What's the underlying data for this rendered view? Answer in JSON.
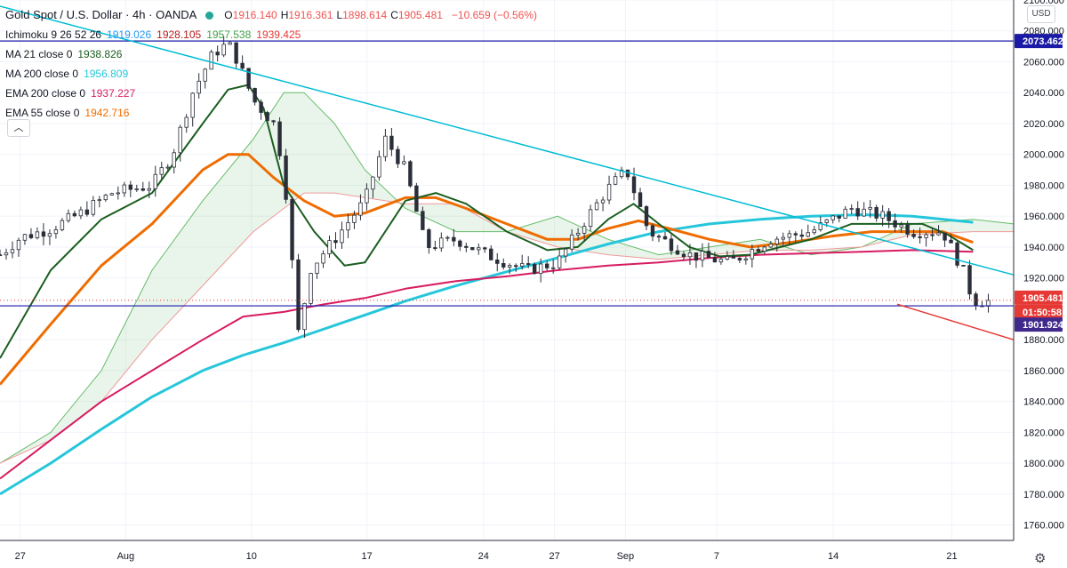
{
  "header": {
    "title": "Gold Spot / U.S. Dollar · 4h · OANDA",
    "ohlc": [
      {
        "k": "O",
        "v": "1916.140"
      },
      {
        "k": "H",
        "v": "1916.361"
      },
      {
        "k": "L",
        "v": "1898.614"
      },
      {
        "k": "C",
        "v": "1905.481"
      }
    ],
    "change": "−10.659 (−0.56%)"
  },
  "indicators": [
    {
      "name": "Ichimoku 9 26 52 26",
      "values": [
        {
          "v": "1919.026",
          "color": "#2196f3"
        },
        {
          "v": "1928.105",
          "color": "#b71c1c"
        },
        {
          "v": "1957.538",
          "color": "#43a047"
        },
        {
          "v": "1939.425",
          "color": "#e53935"
        }
      ]
    },
    {
      "name": "MA 21 close 0",
      "values": [
        {
          "v": "1938.826",
          "color": "#1b5e20"
        }
      ]
    },
    {
      "name": "MA 200 close 0",
      "values": [
        {
          "v": "1956.809",
          "color": "#26c6da"
        }
      ]
    },
    {
      "name": "EMA 200 close 0",
      "values": [
        {
          "v": "1937.227",
          "color": "#d81b60"
        }
      ]
    },
    {
      "name": "EMA 55 close 0",
      "values": [
        {
          "v": "1942.716",
          "color": "#ef6c00"
        }
      ]
    }
  ],
  "collapse_icon": "chevron-up-icon",
  "currency_label": "USD",
  "settings_icon": "gear-icon",
  "chart_data": {
    "type": "candlestick",
    "timeframe": "4h",
    "symbol": "Gold Spot / U.S. Dollar",
    "exchange": "OANDA",
    "ylim": [
      1750,
      2100
    ],
    "y_ticks": [
      2100,
      2080,
      2060,
      2040,
      2020,
      2000,
      1980,
      1960,
      1940,
      1920,
      1880,
      1860,
      1840,
      1820,
      1800,
      1780,
      1760
    ],
    "x_ticks": [
      {
        "label": "27",
        "t": 0.02
      },
      {
        "label": "Aug",
        "t": 0.124
      },
      {
        "label": "10",
        "t": 0.248
      },
      {
        "label": "17",
        "t": 0.362
      },
      {
        "label": "24",
        "t": 0.477
      },
      {
        "label": "27",
        "t": 0.547
      },
      {
        "label": "Sep",
        "t": 0.617
      },
      {
        "label": "7",
        "t": 0.707
      },
      {
        "label": "14",
        "t": 0.822
      },
      {
        "label": "21",
        "t": 0.939
      }
    ],
    "horizontal_levels": [
      {
        "value": 2073.462,
        "label": "2073.462",
        "color": "#1a1aa6"
      },
      {
        "value": 1901.924,
        "label": "1901.924",
        "color": "#1a1aa6"
      }
    ],
    "last_price": {
      "value": 1905.481,
      "label": "1905.481",
      "countdown": "01:50:58",
      "color": "#e53935"
    },
    "trendlines": [
      {
        "color": "#00bcd4",
        "points": [
          [
            0.0,
            2096
          ],
          [
            1.0,
            1922
          ]
        ]
      },
      {
        "color": "#e53935",
        "points": [
          [
            0.885,
            1903
          ],
          [
            1.0,
            1880
          ]
        ]
      }
    ],
    "series": {
      "price_path": [
        [
          0.0,
          1935
        ],
        [
          0.02,
          1946
        ],
        [
          0.05,
          1952
        ],
        [
          0.08,
          1962
        ],
        [
          0.11,
          1975
        ],
        [
          0.15,
          1980
        ],
        [
          0.17,
          2000
        ],
        [
          0.19,
          2040
        ],
        [
          0.21,
          2065
        ],
        [
          0.225,
          2072
        ],
        [
          0.235,
          2060
        ],
        [
          0.25,
          2035
        ],
        [
          0.27,
          2020
        ],
        [
          0.28,
          1990
        ],
        [
          0.295,
          1880
        ],
        [
          0.305,
          1925
        ],
        [
          0.33,
          1945
        ],
        [
          0.36,
          1970
        ],
        [
          0.38,
          2010
        ],
        [
          0.4,
          1990
        ],
        [
          0.42,
          1940
        ],
        [
          0.45,
          1945
        ],
        [
          0.48,
          1935
        ],
        [
          0.52,
          1925
        ],
        [
          0.55,
          1930
        ],
        [
          0.58,
          1960
        ],
        [
          0.6,
          1978
        ],
        [
          0.618,
          1990
        ],
        [
          0.64,
          1950
        ],
        [
          0.68,
          1935
        ],
        [
          0.72,
          1930
        ],
        [
          0.76,
          1945
        ],
        [
          0.8,
          1950
        ],
        [
          0.84,
          1965
        ],
        [
          0.87,
          1960
        ],
        [
          0.9,
          1950
        ],
        [
          0.93,
          1950
        ],
        [
          0.95,
          1925
        ],
        [
          0.96,
          1905
        ],
        [
          0.975,
          1905
        ]
      ],
      "ma21": [
        [
          0.0,
          1868
        ],
        [
          0.05,
          1925
        ],
        [
          0.1,
          1958
        ],
        [
          0.15,
          1975
        ],
        [
          0.2,
          2020
        ],
        [
          0.225,
          2042
        ],
        [
          0.245,
          2045
        ],
        [
          0.26,
          2030
        ],
        [
          0.28,
          1980
        ],
        [
          0.31,
          1950
        ],
        [
          0.34,
          1928
        ],
        [
          0.36,
          1930
        ],
        [
          0.38,
          1950
        ],
        [
          0.4,
          1970
        ],
        [
          0.43,
          1975
        ],
        [
          0.46,
          1968
        ],
        [
          0.5,
          1950
        ],
        [
          0.54,
          1938
        ],
        [
          0.57,
          1940
        ],
        [
          0.6,
          1958
        ],
        [
          0.625,
          1968
        ],
        [
          0.65,
          1955
        ],
        [
          0.68,
          1940
        ],
        [
          0.71,
          1934
        ],
        [
          0.74,
          1935
        ],
        [
          0.77,
          1940
        ],
        [
          0.8,
          1945
        ],
        [
          0.84,
          1955
        ],
        [
          0.88,
          1955
        ],
        [
          0.91,
          1955
        ],
        [
          0.935,
          1948
        ],
        [
          0.96,
          1938
        ]
      ],
      "ema55": [
        [
          0.0,
          1851
        ],
        [
          0.05,
          1890
        ],
        [
          0.1,
          1928
        ],
        [
          0.15,
          1955
        ],
        [
          0.2,
          1990
        ],
        [
          0.225,
          2000
        ],
        [
          0.245,
          2000
        ],
        [
          0.27,
          1985
        ],
        [
          0.3,
          1970
        ],
        [
          0.33,
          1960
        ],
        [
          0.36,
          1962
        ],
        [
          0.4,
          1972
        ],
        [
          0.43,
          1972
        ],
        [
          0.46,
          1965
        ],
        [
          0.5,
          1955
        ],
        [
          0.54,
          1945
        ],
        [
          0.57,
          1945
        ],
        [
          0.6,
          1952
        ],
        [
          0.63,
          1957
        ],
        [
          0.66,
          1952
        ],
        [
          0.7,
          1945
        ],
        [
          0.74,
          1940
        ],
        [
          0.78,
          1943
        ],
        [
          0.82,
          1947
        ],
        [
          0.86,
          1950
        ],
        [
          0.9,
          1950
        ],
        [
          0.93,
          1950
        ],
        [
          0.96,
          1943
        ]
      ],
      "ema200": [
        [
          0.0,
          1790
        ],
        [
          0.05,
          1815
        ],
        [
          0.1,
          1840
        ],
        [
          0.15,
          1860
        ],
        [
          0.2,
          1880
        ],
        [
          0.24,
          1895
        ],
        [
          0.28,
          1898
        ],
        [
          0.32,
          1903
        ],
        [
          0.36,
          1907
        ],
        [
          0.4,
          1913
        ],
        [
          0.45,
          1918
        ],
        [
          0.5,
          1921
        ],
        [
          0.55,
          1925
        ],
        [
          0.6,
          1928
        ],
        [
          0.65,
          1930
        ],
        [
          0.7,
          1933
        ],
        [
          0.75,
          1935
        ],
        [
          0.8,
          1936
        ],
        [
          0.85,
          1937
        ],
        [
          0.9,
          1938
        ],
        [
          0.96,
          1937
        ]
      ],
      "ma200": [
        [
          0.0,
          1780
        ],
        [
          0.05,
          1800
        ],
        [
          0.1,
          1822
        ],
        [
          0.15,
          1843
        ],
        [
          0.2,
          1860
        ],
        [
          0.24,
          1870
        ],
        [
          0.28,
          1878
        ],
        [
          0.32,
          1887
        ],
        [
          0.36,
          1896
        ],
        [
          0.4,
          1905
        ],
        [
          0.45,
          1915
        ],
        [
          0.5,
          1924
        ],
        [
          0.55,
          1933
        ],
        [
          0.6,
          1942
        ],
        [
          0.65,
          1950
        ],
        [
          0.7,
          1955
        ],
        [
          0.75,
          1958
        ],
        [
          0.8,
          1960
        ],
        [
          0.85,
          1961
        ],
        [
          0.9,
          1960
        ],
        [
          0.96,
          1956
        ]
      ],
      "cloud_a": [
        [
          0.0,
          1800
        ],
        [
          0.05,
          1820
        ],
        [
          0.1,
          1860
        ],
        [
          0.15,
          1925
        ],
        [
          0.2,
          1970
        ],
        [
          0.25,
          2010
        ],
        [
          0.28,
          2040
        ],
        [
          0.3,
          2040
        ],
        [
          0.33,
          2020
        ],
        [
          0.36,
          1990
        ],
        [
          0.4,
          1965
        ],
        [
          0.45,
          1950
        ],
        [
          0.5,
          1950
        ],
        [
          0.55,
          1960
        ],
        [
          0.6,
          1945
        ],
        [
          0.65,
          1935
        ],
        [
          0.7,
          1940
        ],
        [
          0.75,
          1945
        ],
        [
          0.8,
          1935
        ],
        [
          0.85,
          1940
        ],
        [
          0.9,
          1955
        ],
        [
          0.96,
          1958
        ],
        [
          1.0,
          1955
        ]
      ],
      "cloud_b": [
        [
          0.0,
          1800
        ],
        [
          0.05,
          1815
        ],
        [
          0.1,
          1840
        ],
        [
          0.15,
          1880
        ],
        [
          0.2,
          1915
        ],
        [
          0.25,
          1950
        ],
        [
          0.28,
          1965
        ],
        [
          0.3,
          1975
        ],
        [
          0.33,
          1975
        ],
        [
          0.36,
          1972
        ],
        [
          0.4,
          1968
        ],
        [
          0.45,
          1968
        ],
        [
          0.5,
          1950
        ],
        [
          0.55,
          1940
        ],
        [
          0.6,
          1935
        ],
        [
          0.65,
          1932
        ],
        [
          0.7,
          1935
        ],
        [
          0.75,
          1938
        ],
        [
          0.8,
          1938
        ],
        [
          0.85,
          1940
        ],
        [
          0.9,
          1948
        ],
        [
          0.96,
          1950
        ],
        [
          1.0,
          1950
        ]
      ]
    }
  }
}
